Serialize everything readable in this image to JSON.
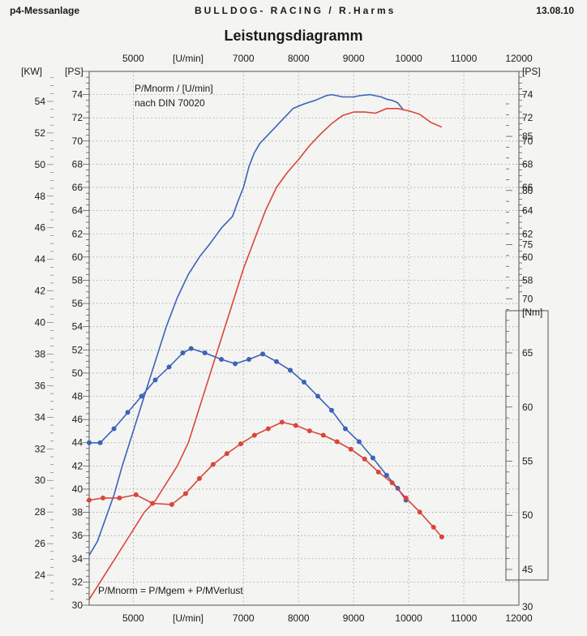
{
  "header": {
    "left": "p4-Messanlage",
    "center": "BULLDOG- RACING   / R.Harms",
    "right": "13.08.10"
  },
  "chart_data": {
    "type": "line",
    "title": "Leistungsdiagramm",
    "x_axis": {
      "label": "[U/min]",
      "range": [
        4200,
        12000
      ],
      "ticks": [
        5000,
        7000,
        8000,
        9000,
        10000,
        11000,
        12000
      ],
      "grid": true
    },
    "left_axes": [
      {
        "label": "[KW]",
        "range": [
          22.1,
          55.9
        ],
        "ticks": [
          24,
          26,
          28,
          30,
          32,
          34,
          36,
          38,
          40,
          42,
          44,
          46,
          48,
          50,
          52,
          54
        ]
      },
      {
        "label": "[PS]",
        "range": [
          30,
          76
        ],
        "ticks": [
          30,
          32,
          34,
          36,
          38,
          40,
          42,
          44,
          46,
          48,
          50,
          52,
          54,
          56,
          58,
          60,
          62,
          64,
          66,
          68,
          70,
          72,
          74
        ]
      }
    ],
    "right_axes": [
      {
        "label": "[PS]",
        "range": [
          30,
          76
        ],
        "ticks": [
          58,
          60,
          62,
          64,
          66,
          68,
          70,
          72,
          74
        ]
      },
      {
        "label": "[Nm]",
        "range": [
          41.7,
          91.0
        ],
        "ticks": [
          45,
          50,
          55,
          60,
          65,
          70,
          75,
          80,
          85
        ]
      }
    ],
    "annotations": [
      "P/Mnorm / [U/min]",
      "nach DIN 70020",
      "P/Mnorm = P/Mgem + P/MVerlust"
    ],
    "series": [
      {
        "color": "#3b63b8",
        "axis": "PS",
        "x": [
          4200,
          4350,
          4500,
          4650,
          4800,
          5000,
          5200,
          5400,
          5600,
          5800,
          6000,
          6200,
          6400,
          6600,
          6800,
          6900,
          7000,
          7100,
          7200,
          7300,
          7500,
          7700,
          7900,
          8100,
          8300,
          8500,
          8600,
          8700,
          8800,
          8900,
          9000,
          9100,
          9300,
          9500,
          9600,
          9700,
          9800,
          9900
        ],
        "y": [
          34.3,
          35.5,
          37.5,
          39.5,
          42,
          45,
          48,
          51,
          54,
          56.5,
          58.5,
          60,
          61.2,
          62.5,
          63.5,
          64.8,
          66,
          67.8,
          69,
          69.8,
          70.8,
          71.8,
          72.8,
          73.2,
          73.5,
          73.9,
          74,
          73.9,
          73.8,
          73.8,
          73.8,
          73.9,
          74,
          73.8,
          73.6,
          73.5,
          73.3,
          72.7
        ]
      },
      {
        "color": "#d9463a",
        "axis": "PS",
        "x": [
          4200,
          4400,
          4600,
          4800,
          5000,
          5200,
          5400,
          5600,
          5800,
          6000,
          6200,
          6400,
          6600,
          6800,
          7000,
          7200,
          7400,
          7600,
          7800,
          8000,
          8200,
          8400,
          8600,
          8800,
          9000,
          9200,
          9400,
          9600,
          9800,
          10000,
          10200,
          10400,
          10600
        ],
        "y": [
          30.5,
          32,
          33.5,
          35,
          36.5,
          38,
          39,
          40.5,
          42,
          44,
          47,
          50,
          53,
          56,
          59,
          61.5,
          64,
          66,
          67.3,
          68.4,
          69.6,
          70.6,
          71.5,
          72.2,
          72.5,
          72.5,
          72.4,
          72.8,
          72.8,
          72.6,
          72.3,
          71.6,
          71.2
        ]
      },
      {
        "color": "#3b63b8",
        "axis": "Nm",
        "x": [
          4200,
          4400,
          4650,
          4900,
          5150,
          5400,
          5650,
          5900,
          6050,
          6300,
          6600,
          6850,
          7100,
          7350,
          7600,
          7850,
          8100,
          8350,
          8600,
          8850,
          9100,
          9350,
          9600,
          9800,
          9950
        ],
        "y": [
          56.7,
          56.7,
          58.0,
          59.5,
          61.0,
          62.5,
          63.7,
          65.0,
          65.4,
          65.0,
          64.4,
          64.0,
          64.4,
          64.9,
          64.2,
          63.4,
          62.3,
          61.0,
          59.7,
          58.0,
          56.8,
          55.3,
          53.7,
          52.5,
          51.4
        ]
      },
      {
        "color": "#d9463a",
        "axis": "Nm",
        "x": [
          4200,
          4450,
          4750,
          5050,
          5350,
          5700,
          5950,
          6200,
          6450,
          6700,
          6950,
          7200,
          7450,
          7700,
          7950,
          8200,
          8450,
          8700,
          8950,
          9200,
          9450,
          9700,
          9950,
          10200,
          10450,
          10600
        ],
        "y": [
          51.4,
          51.6,
          51.6,
          51.9,
          51.1,
          51.0,
          52.0,
          53.4,
          54.7,
          55.7,
          56.6,
          57.4,
          58.0,
          58.6,
          58.3,
          57.8,
          57.4,
          56.8,
          56.1,
          55.2,
          54.0,
          53.0,
          51.6,
          50.3,
          48.9,
          48.0
        ]
      }
    ]
  }
}
